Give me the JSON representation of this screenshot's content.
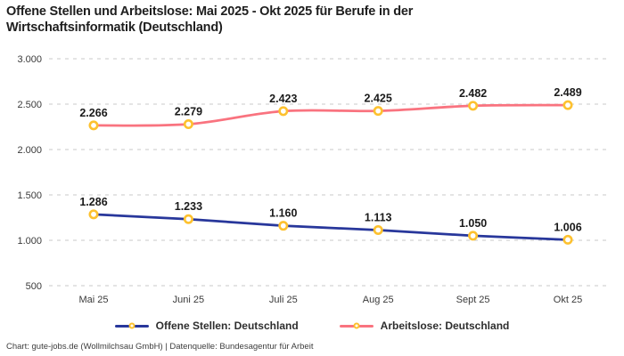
{
  "title": "Offene Stellen und Arbeitslose: Mai 2025 - Okt 2025 für Berufe in der Wirtschaftsinformatik (Deutschland)",
  "footer": "Chart: gute-jobs.de (Wollmilchsau GmbH) | Datenquelle: Bundesagentur für Arbeit",
  "legend": [
    {
      "label": "Offene Stellen: Deutschland",
      "color": "#28379b"
    },
    {
      "label": "Arbeitslose: Deutschland",
      "color": "#f9737f"
    }
  ],
  "colors": {
    "offene_stellen_line": "#28379b",
    "arbeitslose_line": "#f9737f",
    "marker_ring": "#fdc12f",
    "marker_fill": "#ffffff",
    "gridline": "#c9c9c9",
    "tick_text": "#3a3a3a",
    "data_label_text": "#1a1a1a"
  },
  "chart_data": {
    "type": "line",
    "title": "Offene Stellen und Arbeitslose: Mai 2025 - Okt 2025 für Berufe in der Wirtschaftsinformatik (Deutschland)",
    "categories": [
      "Mai 25",
      "Juni 25",
      "Juli 25",
      "Aug 25",
      "Sept 25",
      "Okt 25"
    ],
    "series": [
      {
        "name": "Offene Stellen: Deutschland",
        "values": [
          1286,
          1233,
          1160,
          1113,
          1050,
          1006
        ],
        "labels": [
          "1.286",
          "1.233",
          "1.160",
          "1.113",
          "1.050",
          "1.006"
        ],
        "color": "#28379b",
        "curve": "linear"
      },
      {
        "name": "Arbeitslose: Deutschland",
        "values": [
          2266,
          2279,
          2423,
          2425,
          2482,
          2489
        ],
        "labels": [
          "2.266",
          "2.279",
          "2.423",
          "2.425",
          "2.482",
          "2.489"
        ],
        "color": "#f9737f",
        "curve": "smooth"
      }
    ],
    "xlabel": "",
    "ylabel": "",
    "ylim": [
      500,
      3000
    ],
    "yticks": [
      500,
      1000,
      1500,
      2000,
      2500,
      3000
    ],
    "ytick_labels": [
      "500",
      "1.000",
      "1.500",
      "2.000",
      "2.500",
      "3.000"
    ],
    "grid": true,
    "grid_style": "dashed",
    "legend_position": "bottom"
  }
}
